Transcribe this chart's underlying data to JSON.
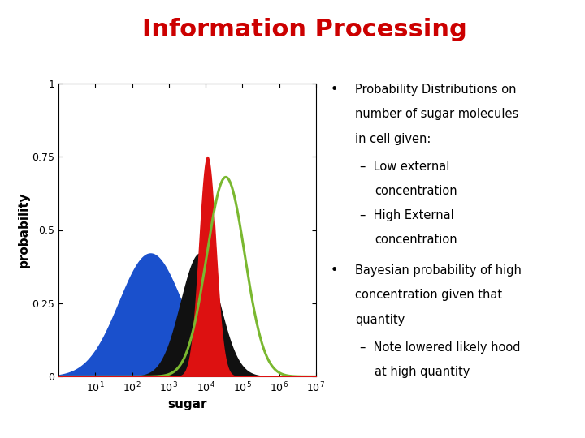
{
  "title": "Information Processing",
  "title_color": "#cc0000",
  "title_fontsize": 22,
  "bg_color": "#ffffff",
  "header_bar_color": "#3d5016",
  "plot_xlabel": "sugar",
  "plot_ylabel": "probability",
  "plot_yticks": [
    0,
    0.25,
    0.5,
    0.75,
    1
  ],
  "plot_xlog_min": 1,
  "plot_xlog_max": 10000000.0,
  "blue_mean_log": 2.5,
  "blue_std_log": 0.85,
  "blue_peak": 0.42,
  "red_mean_log": 4.05,
  "red_std_log": 0.22,
  "red_peak": 0.75,
  "green_mean_log": 4.55,
  "green_std_log": 0.52,
  "green_peak": 0.68,
  "black_mean_log": 3.85,
  "black_std_log": 0.52,
  "black_peak": 0.42,
  "blue_color": "#1a50cc",
  "red_color": "#dd1111",
  "green_color": "#7ab830",
  "black_color": "#111111",
  "text_fontsize": 10.5
}
